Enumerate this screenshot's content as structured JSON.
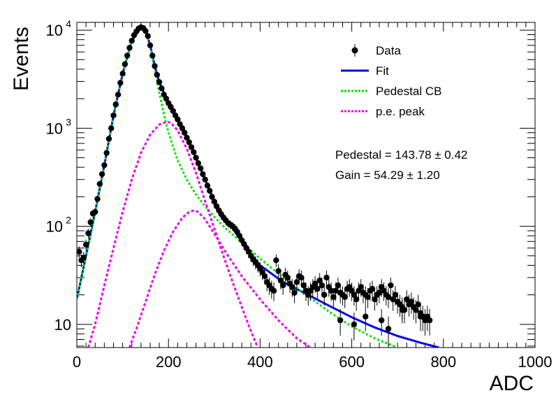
{
  "chart_data": {
    "type": "scatter",
    "xlabel": "ADC",
    "ylabel": "Events",
    "xlim": [
      0,
      1000
    ],
    "ylim": [
      5.8,
      12000
    ],
    "yscale": "log",
    "x_ticks": [
      "0",
      "200",
      "400",
      "600",
      "800",
      "1000"
    ],
    "y_ticks": [
      {
        "value": 10,
        "label": "10"
      },
      {
        "value": 100,
        "label": "10",
        "exp": "2"
      },
      {
        "value": 1000,
        "label": "10",
        "exp": "3"
      },
      {
        "value": 10000,
        "label": "10",
        "exp": "4"
      }
    ],
    "legend_position": "top-right",
    "legend": [
      {
        "label": "Data",
        "style": "marker"
      },
      {
        "label": "Fit",
        "style": "solid",
        "color": "#0000ee"
      },
      {
        "label": "Pedestal CB",
        "style": "dotted",
        "color": "#00e000"
      },
      {
        "label": "p.e. peak",
        "style": "dotted",
        "color": "#ee00ee"
      }
    ],
    "annotations": [
      "Pedestal = 143.78 ± 0.42",
      "Gain = 54.29 ± 1.20"
    ],
    "series": [
      {
        "name": "Data",
        "kind": "points",
        "color": "#000000",
        "points": [
          [
            5,
            55
          ],
          [
            10,
            45
          ],
          [
            15,
            48
          ],
          [
            20,
            65
          ],
          [
            25,
            85
          ],
          [
            30,
            110
          ],
          [
            35,
            135
          ],
          [
            40,
            140
          ],
          [
            45,
            190
          ],
          [
            50,
            270
          ],
          [
            55,
            340
          ],
          [
            60,
            420
          ],
          [
            65,
            560
          ],
          [
            70,
            780
          ],
          [
            75,
            1000
          ],
          [
            80,
            1350
          ],
          [
            85,
            1750
          ],
          [
            90,
            2200
          ],
          [
            95,
            2900
          ],
          [
            100,
            3600
          ],
          [
            105,
            4500
          ],
          [
            110,
            5500
          ],
          [
            115,
            6600
          ],
          [
            120,
            7800
          ],
          [
            125,
            8900
          ],
          [
            130,
            9700
          ],
          [
            135,
            10400
          ],
          [
            140,
            10700
          ],
          [
            145,
            10500
          ],
          [
            150,
            9800
          ],
          [
            155,
            8700
          ],
          [
            160,
            7000
          ],
          [
            165,
            5500
          ],
          [
            170,
            4300
          ],
          [
            175,
            3500
          ],
          [
            180,
            2950
          ],
          [
            185,
            2550
          ],
          [
            190,
            2200
          ],
          [
            195,
            2000
          ],
          [
            200,
            1800
          ],
          [
            205,
            1650
          ],
          [
            210,
            1500
          ],
          [
            215,
            1350
          ],
          [
            220,
            1230
          ],
          [
            225,
            1100
          ],
          [
            230,
            1000
          ],
          [
            235,
            900
          ],
          [
            240,
            800
          ],
          [
            245,
            720
          ],
          [
            250,
            640
          ],
          [
            255,
            570
          ],
          [
            260,
            500
          ],
          [
            265,
            440
          ],
          [
            270,
            390
          ],
          [
            275,
            340
          ],
          [
            280,
            300
          ],
          [
            285,
            260
          ],
          [
            290,
            230
          ],
          [
            295,
            200
          ],
          [
            300,
            178
          ],
          [
            305,
            160
          ],
          [
            310,
            145
          ],
          [
            315,
            133
          ],
          [
            320,
            123
          ],
          [
            325,
            115
          ],
          [
            330,
            108
          ],
          [
            335,
            104
          ],
          [
            340,
            100
          ],
          [
            345,
            95
          ],
          [
            350,
            88
          ],
          [
            355,
            80
          ],
          [
            360,
            72
          ],
          [
            365,
            66
          ],
          [
            370,
            60
          ],
          [
            375,
            55
          ],
          [
            380,
            50
          ],
          [
            385,
            46
          ],
          [
            390,
            43
          ],
          [
            395,
            40
          ],
          [
            400,
            37
          ],
          [
            405,
            34
          ],
          [
            410,
            31
          ],
          [
            415,
            27
          ],
          [
            420,
            25
          ],
          [
            425,
            23
          ],
          [
            430,
            22
          ],
          [
            435,
            45
          ],
          [
            440,
            35
          ],
          [
            445,
            28
          ],
          [
            450,
            25
          ],
          [
            455,
            32
          ],
          [
            460,
            30
          ],
          [
            465,
            26
          ],
          [
            470,
            24
          ],
          [
            475,
            21
          ],
          [
            480,
            27
          ],
          [
            485,
            31
          ],
          [
            490,
            30
          ],
          [
            495,
            25
          ],
          [
            500,
            22
          ],
          [
            505,
            20
          ],
          [
            510,
            22
          ],
          [
            515,
            24
          ],
          [
            520,
            26
          ],
          [
            525,
            23
          ],
          [
            530,
            28
          ],
          [
            535,
            25
          ],
          [
            540,
            20
          ],
          [
            545,
            30
          ],
          [
            550,
            24
          ],
          [
            555,
            22
          ],
          [
            560,
            19
          ],
          [
            565,
            22
          ],
          [
            570,
            25
          ],
          [
            575,
            21
          ],
          [
            580,
            20
          ],
          [
            585,
            19
          ],
          [
            590,
            23
          ],
          [
            595,
            24
          ],
          [
            600,
            22
          ],
          [
            605,
            20
          ],
          [
            610,
            18
          ],
          [
            615,
            22
          ],
          [
            620,
            24
          ],
          [
            625,
            21
          ],
          [
            630,
            20
          ],
          [
            635,
            19
          ],
          [
            640,
            22
          ],
          [
            645,
            23
          ],
          [
            650,
            18
          ],
          [
            655,
            20
          ],
          [
            660,
            21
          ],
          [
            665,
            24
          ],
          [
            670,
            22
          ],
          [
            675,
            20
          ],
          [
            680,
            19
          ],
          [
            685,
            25
          ],
          [
            690,
            18
          ],
          [
            695,
            20
          ],
          [
            700,
            17
          ],
          [
            705,
            16
          ],
          [
            710,
            15
          ],
          [
            715,
            14
          ],
          [
            720,
            18
          ],
          [
            725,
            16
          ],
          [
            730,
            17
          ],
          [
            735,
            15
          ],
          [
            740,
            14
          ],
          [
            745,
            16
          ],
          [
            750,
            13
          ],
          [
            755,
            12
          ],
          [
            760,
            11
          ],
          [
            765,
            12
          ],
          [
            770,
            11
          ]
        ],
        "extra_points": [
          [
            575,
            11
          ],
          [
            605,
            10
          ],
          [
            630,
            12
          ],
          [
            665,
            11
          ],
          [
            680,
            9
          ],
          [
            710,
            14
          ],
          [
            750,
            12
          ]
        ]
      },
      {
        "name": "Fit",
        "kind": "line",
        "color": "#0000ee",
        "points": [
          [
            0,
            18
          ],
          [
            20,
            50
          ],
          [
            40,
            140
          ],
          [
            60,
            420
          ],
          [
            80,
            1350
          ],
          [
            100,
            3600
          ],
          [
            120,
            7800
          ],
          [
            140,
            10600
          ],
          [
            150,
            9800
          ],
          [
            160,
            7000
          ],
          [
            170,
            4300
          ],
          [
            180,
            2950
          ],
          [
            200,
            1800
          ],
          [
            220,
            1230
          ],
          [
            240,
            800
          ],
          [
            260,
            500
          ],
          [
            280,
            300
          ],
          [
            300,
            178
          ],
          [
            320,
            123
          ],
          [
            340,
            95
          ],
          [
            360,
            70
          ],
          [
            380,
            52
          ],
          [
            400,
            40
          ],
          [
            450,
            27
          ],
          [
            500,
            20.5
          ],
          [
            550,
            15.5
          ],
          [
            600,
            11.8
          ],
          [
            650,
            9.3
          ],
          [
            700,
            7.6
          ],
          [
            750,
            6.5
          ],
          [
            790,
            5.8
          ]
        ]
      },
      {
        "name": "Pedestal CB",
        "kind": "line",
        "color": "#00e000",
        "points": [
          [
            0,
            18
          ],
          [
            20,
            50
          ],
          [
            40,
            140
          ],
          [
            60,
            420
          ],
          [
            80,
            1350
          ],
          [
            100,
            3600
          ],
          [
            120,
            7800
          ],
          [
            140,
            10600
          ],
          [
            150,
            9800
          ],
          [
            160,
            7000
          ],
          [
            170,
            4000
          ],
          [
            180,
            2300
          ],
          [
            190,
            1400
          ],
          [
            200,
            900
          ],
          [
            220,
            470
          ],
          [
            240,
            300
          ],
          [
            260,
            210
          ],
          [
            280,
            160
          ],
          [
            300,
            125
          ],
          [
            320,
            100
          ],
          [
            350,
            75
          ],
          [
            400,
            47
          ],
          [
            450,
            30
          ],
          [
            500,
            20
          ],
          [
            550,
            13.5
          ],
          [
            600,
            9.5
          ],
          [
            650,
            7.2
          ],
          [
            700,
            5.8
          ]
        ]
      },
      {
        "name": "p.e. peak 1",
        "kind": "line",
        "color": "#ee00ee",
        "points": [
          [
            25,
            5.8
          ],
          [
            40,
            10
          ],
          [
            60,
            25
          ],
          [
            80,
            60
          ],
          [
            100,
            140
          ],
          [
            120,
            300
          ],
          [
            140,
            560
          ],
          [
            160,
            860
          ],
          [
            180,
            1090
          ],
          [
            195,
            1160
          ],
          [
            205,
            1140
          ],
          [
            220,
            950
          ],
          [
            240,
            620
          ],
          [
            260,
            350
          ],
          [
            280,
            180
          ],
          [
            300,
            95
          ],
          [
            320,
            50
          ],
          [
            340,
            27
          ],
          [
            360,
            15
          ],
          [
            380,
            8.5
          ],
          [
            395,
            5.8
          ]
        ]
      },
      {
        "name": "p.e. peak 2",
        "kind": "line",
        "color": "#ee00ee",
        "points": [
          [
            115,
            5.8
          ],
          [
            130,
            9
          ],
          [
            150,
            17
          ],
          [
            170,
            32
          ],
          [
            190,
            56
          ],
          [
            210,
            88
          ],
          [
            230,
            122
          ],
          [
            245,
            140
          ],
          [
            255,
            145
          ],
          [
            265,
            140
          ],
          [
            280,
            118
          ],
          [
            300,
            84
          ],
          [
            330,
            50
          ],
          [
            360,
            31
          ],
          [
            400,
            18
          ],
          [
            440,
            11
          ],
          [
            480,
            7.2
          ],
          [
            510,
            5.8
          ]
        ]
      }
    ]
  }
}
